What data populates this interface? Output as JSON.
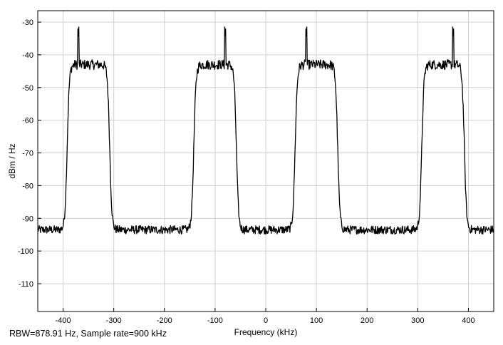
{
  "chart_data": {
    "type": "line",
    "title": "",
    "xlabel": "Frequency (kHz)",
    "ylabel": "dBm / Hz",
    "xlim": [
      -450,
      450
    ],
    "ylim": [
      -118.5,
      -26.5
    ],
    "x_ticks": [
      -400,
      -300,
      -200,
      -100,
      0,
      100,
      200,
      300,
      400
    ],
    "y_ticks": [
      -30,
      -40,
      -50,
      -60,
      -70,
      -80,
      -90,
      -100,
      -110
    ],
    "grid": true,
    "line_color": "#000000",
    "grid_color": "#d0d0d0",
    "noise_floor_dbm_hz": -93.5,
    "channel_level_dbm_hz": -43,
    "channels": [
      {
        "start_khz": -392,
        "end_khz": -308,
        "pilot_khz": -370,
        "pilot_dbm_hz": -34.5
      },
      {
        "start_khz": -142,
        "end_khz": -58,
        "pilot_khz": -80,
        "pilot_dbm_hz": -34.5
      },
      {
        "start_khz": 58,
        "end_khz": 142,
        "pilot_khz": 80,
        "pilot_dbm_hz": -34.5
      },
      {
        "start_khz": 308,
        "end_khz": 392,
        "pilot_khz": 370,
        "pilot_dbm_hz": -34.5
      }
    ]
  },
  "footer": {
    "caption": "RBW=878.91 Hz, Sample rate=900 kHz"
  }
}
